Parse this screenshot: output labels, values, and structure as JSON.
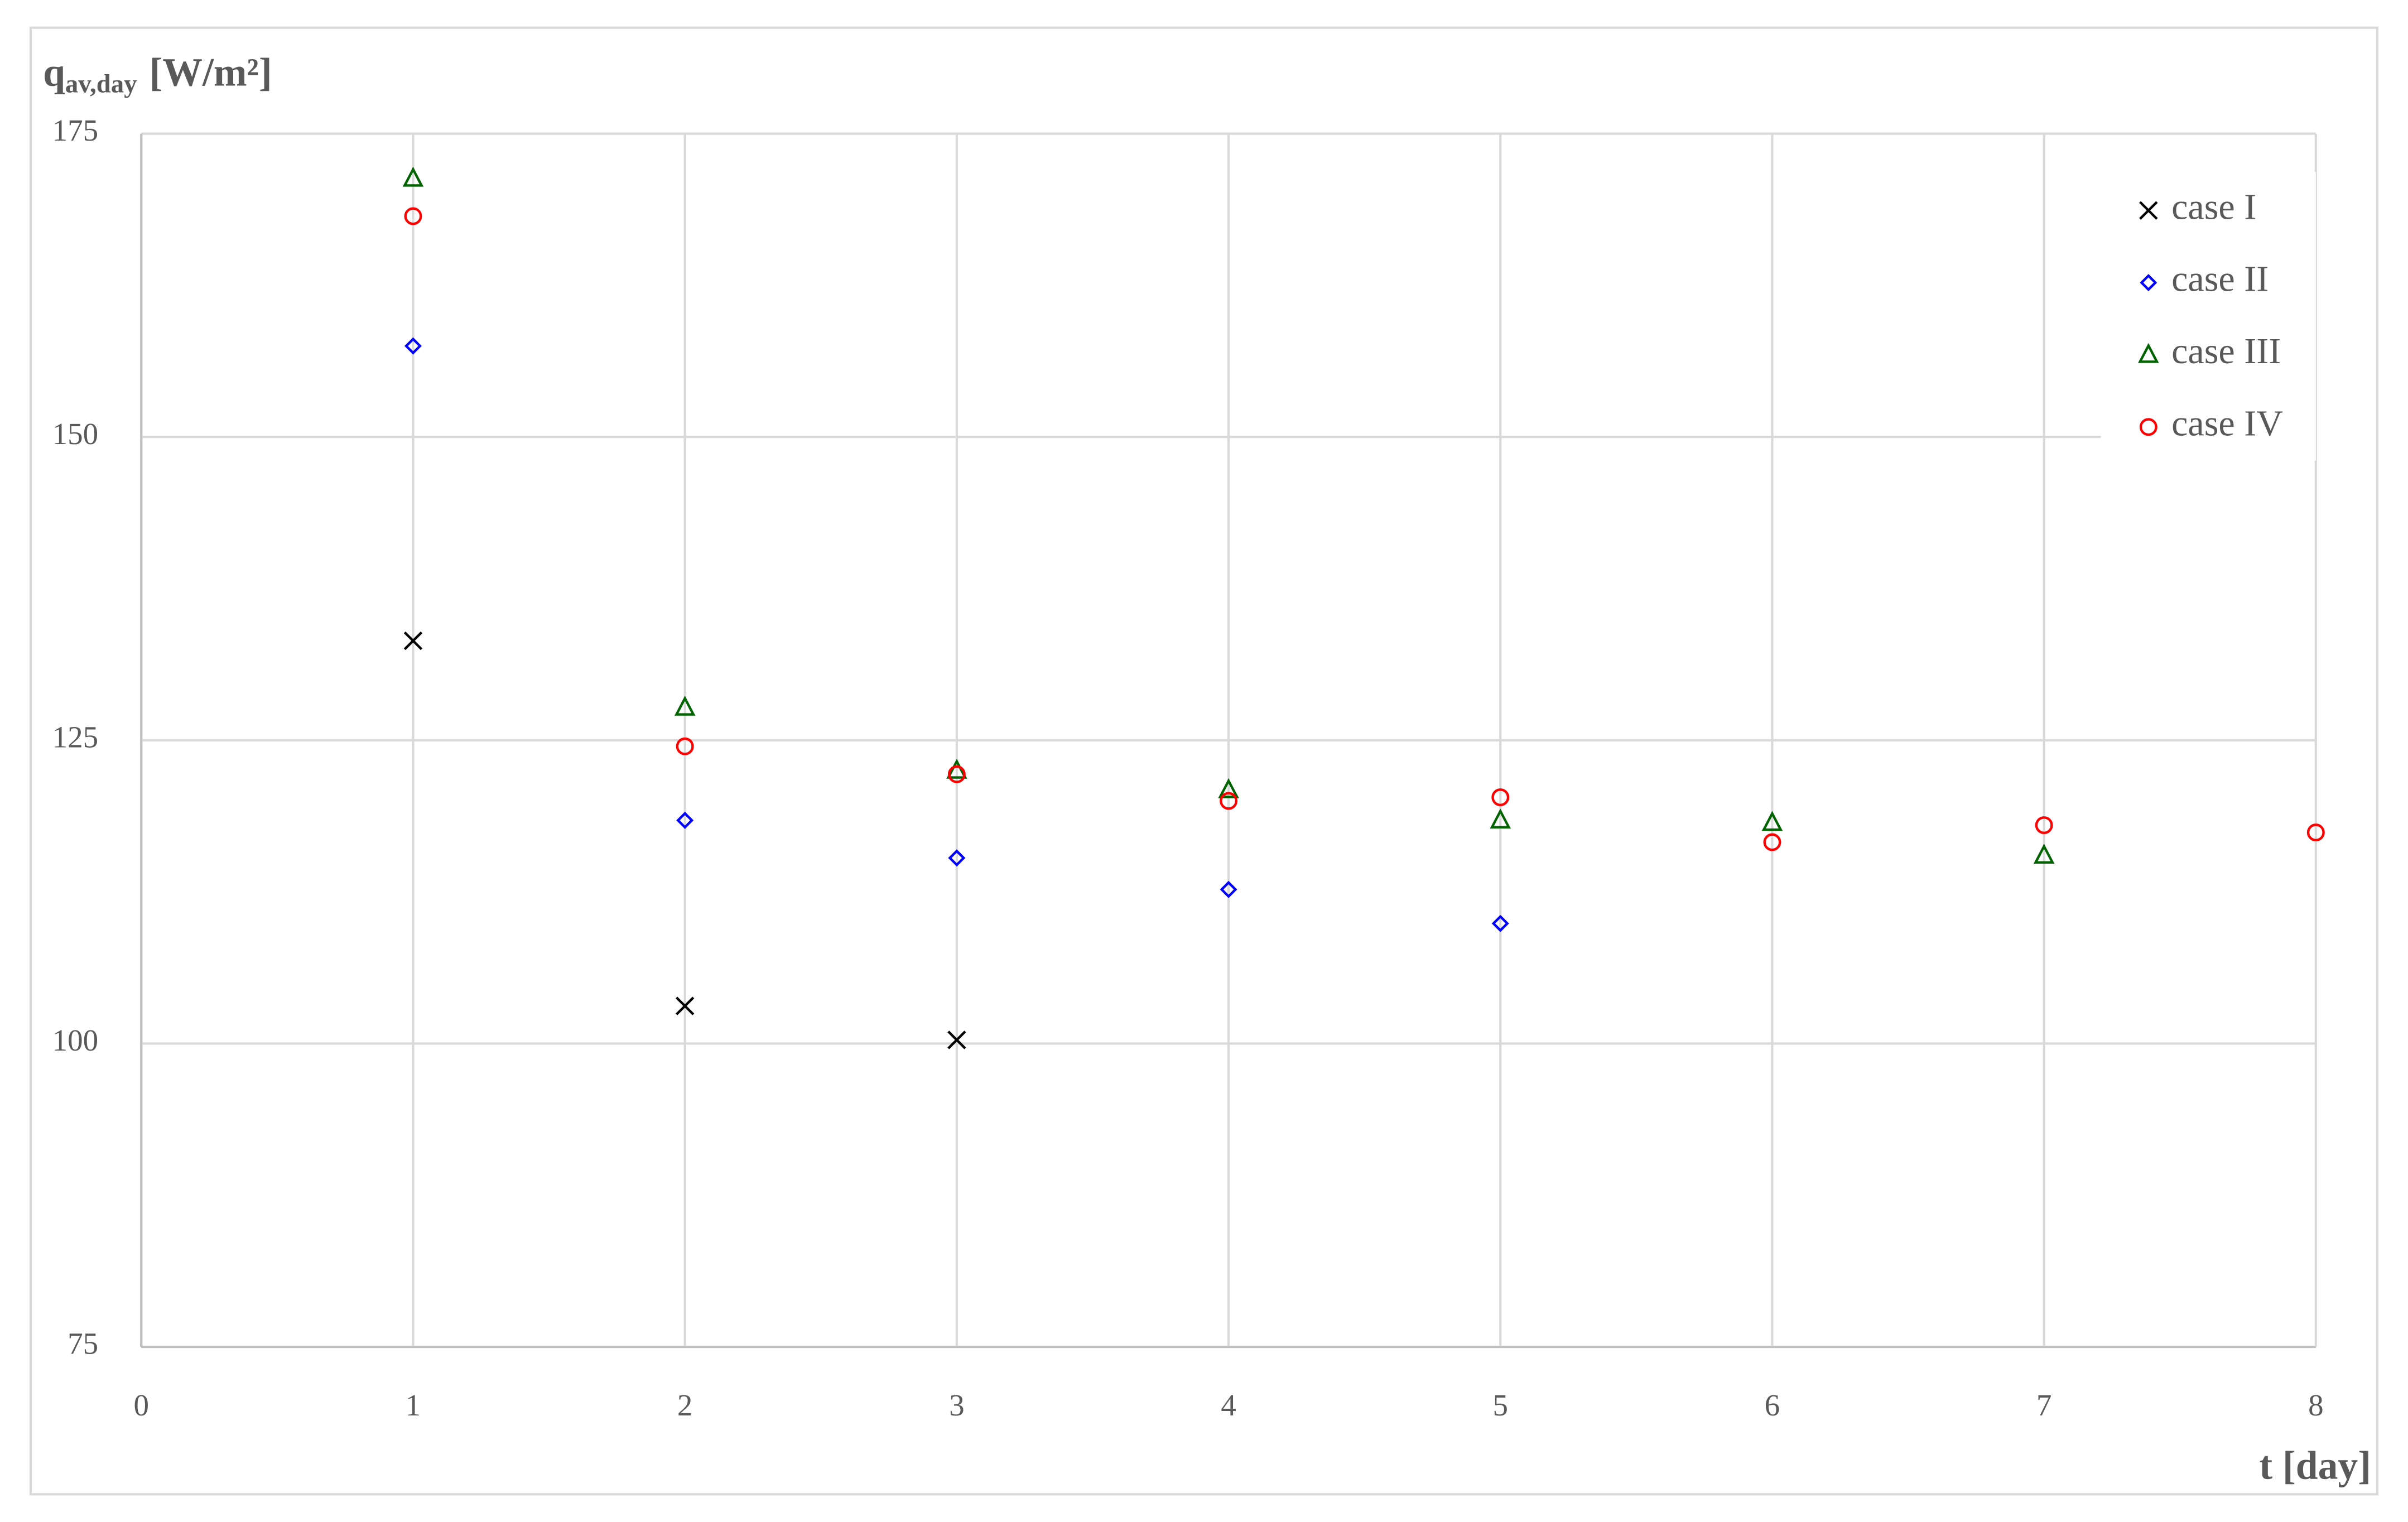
{
  "chart_data": {
    "type": "scatter",
    "y_label": "q",
    "y_label_sub": "av,day",
    "y_label_unit": "[W/m²]",
    "x_label": "t [day]",
    "xlim": [
      0,
      8
    ],
    "xticks": [
      0,
      1,
      2,
      3,
      4,
      5,
      6,
      7,
      8
    ],
    "ylim": [
      75,
      175
    ],
    "yticks": [
      75,
      100,
      125,
      150,
      175
    ],
    "grid": true,
    "legend": "top-right",
    "series": [
      {
        "name": "case I",
        "color": "#000000",
        "marker": "x",
        "x": [
          1,
          2,
          3
        ],
        "values": [
          133.2,
          103.1,
          100.3
        ]
      },
      {
        "name": "case II",
        "color": "#0000ff",
        "marker": "diamond",
        "x": [
          1,
          2,
          3,
          4,
          5
        ],
        "values": [
          157.5,
          118.4,
          115.3,
          112.7,
          109.9
        ]
      },
      {
        "name": "case III",
        "color": "#006400",
        "marker": "triangle",
        "x": [
          1,
          2,
          3,
          4,
          5,
          6,
          7
        ],
        "values": [
          171.3,
          127.7,
          122.5,
          120.9,
          118.4,
          118.2,
          115.5
        ]
      },
      {
        "name": "case IV",
        "color": "#ff0000",
        "marker": "circle",
        "x": [
          1,
          2,
          3,
          4,
          5,
          6,
          7,
          8
        ],
        "values": [
          168.2,
          124.5,
          122.2,
          120.0,
          120.3,
          116.6,
          118.0,
          117.4
        ]
      }
    ]
  }
}
